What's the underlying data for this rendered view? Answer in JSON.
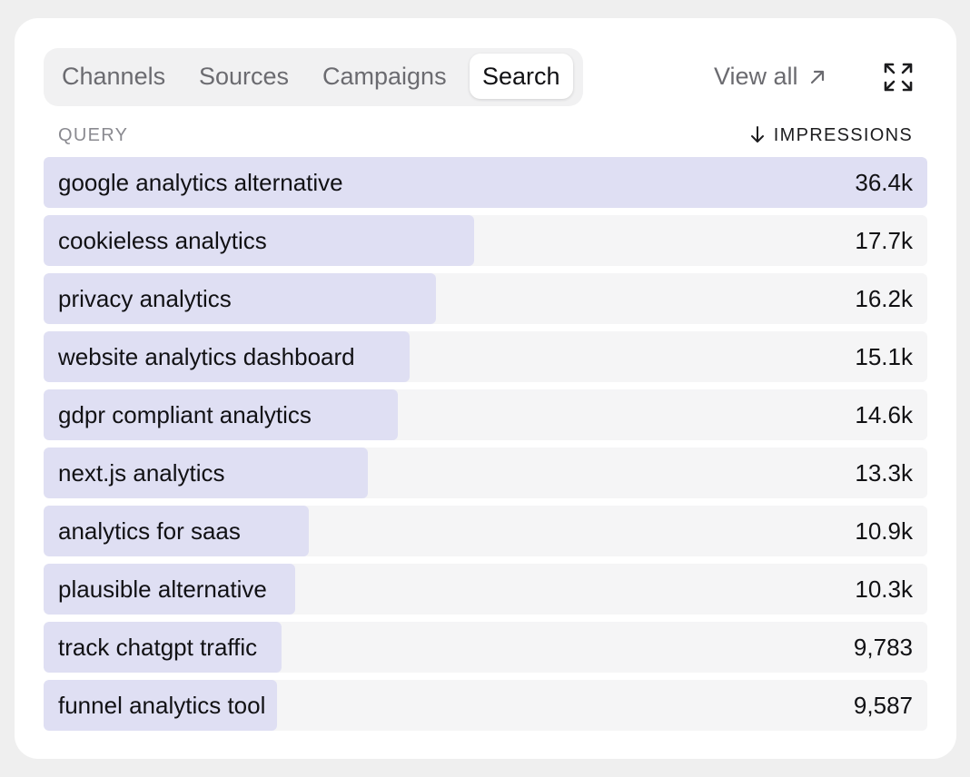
{
  "tabs": [
    {
      "label": "Channels",
      "active": false
    },
    {
      "label": "Sources",
      "active": false
    },
    {
      "label": "Campaigns",
      "active": false
    },
    {
      "label": "Search",
      "active": true
    }
  ],
  "view_all": {
    "label": "View all",
    "icon": "arrow-up-right-icon"
  },
  "expand": {
    "icon": "expand-icon"
  },
  "table": {
    "col_query": "QUERY",
    "col_impressions": "IMPRESSIONS",
    "sort_icon": "arrow-down-icon",
    "rows": [
      {
        "query": "google analytics alternative",
        "impressions": "36.4k"
      },
      {
        "query": "cookieless analytics",
        "impressions": "17.7k"
      },
      {
        "query": "privacy analytics",
        "impressions": "16.2k"
      },
      {
        "query": "website analytics dashboard",
        "impressions": "15.1k"
      },
      {
        "query": "gdpr compliant analytics",
        "impressions": "14.6k"
      },
      {
        "query": "next.js analytics",
        "impressions": "13.3k"
      },
      {
        "query": "analytics for saas",
        "impressions": "10.9k"
      },
      {
        "query": "plausible alternative",
        "impressions": "10.3k"
      },
      {
        "query": "track chatgpt traffic",
        "impressions": "9,783"
      },
      {
        "query": "funnel analytics tool",
        "impressions": "9,587"
      }
    ]
  },
  "colors": {
    "bar": "#dfdff3",
    "track": "#f5f5f6",
    "accent": "#111114"
  }
}
